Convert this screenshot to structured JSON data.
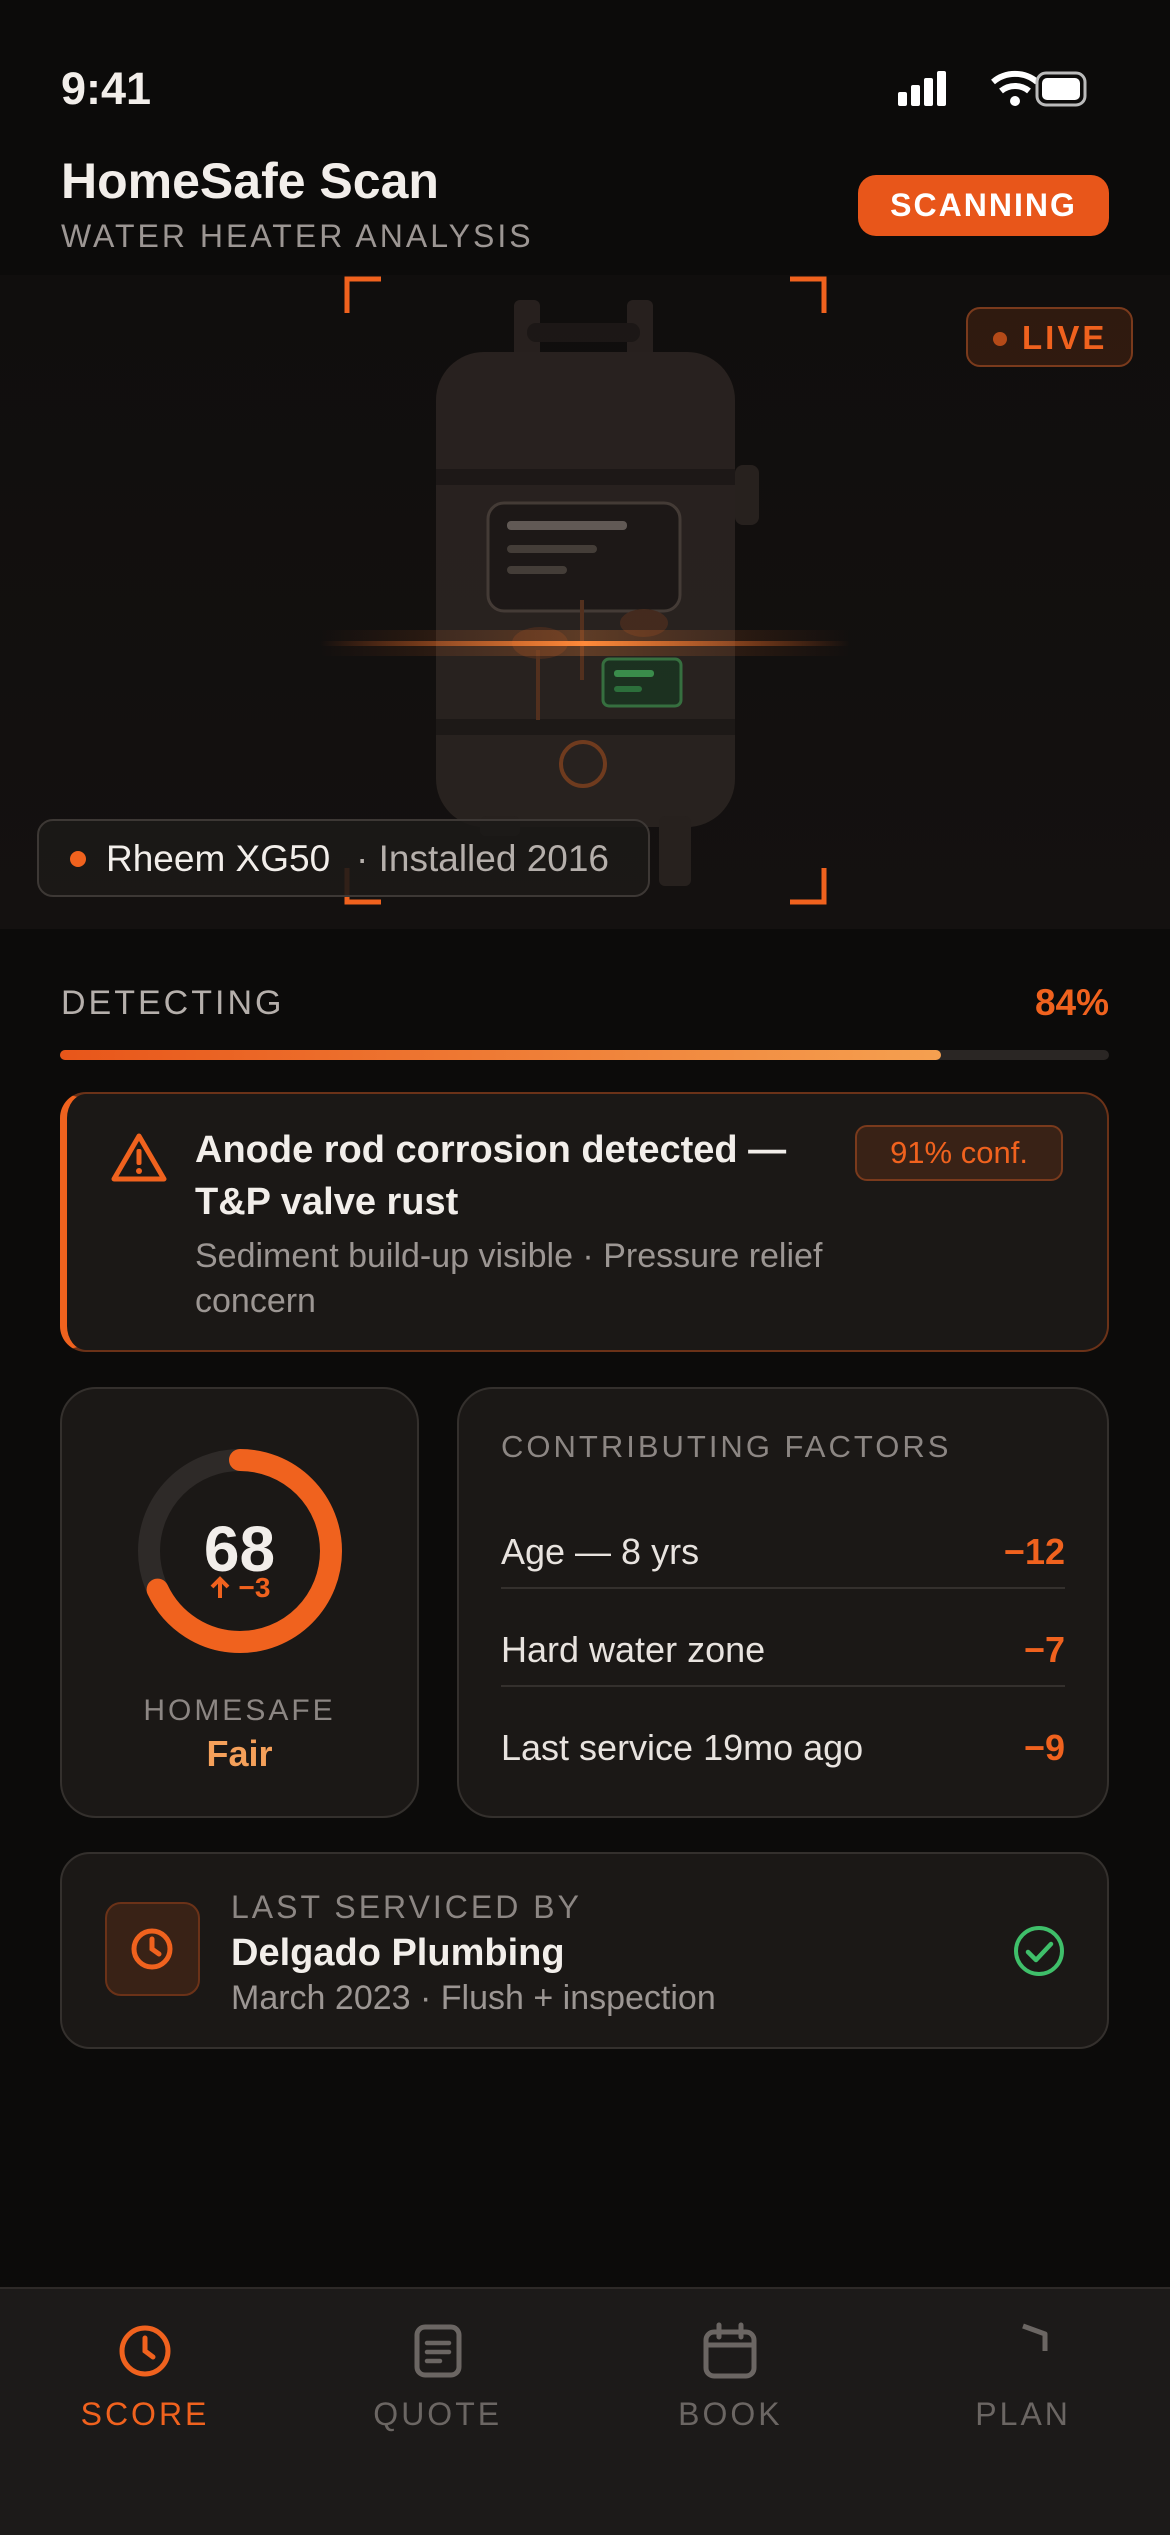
{
  "status_bar": {
    "time": "9:41"
  },
  "header": {
    "title": "HomeSafe Scan",
    "subtitle": "WATER HEATER ANALYSIS",
    "status_button": "SCANNING"
  },
  "scanner": {
    "live_badge": "LIVE",
    "device_model": "Rheem XG50",
    "device_detail": "· Installed 2016"
  },
  "progress": {
    "label": "DETECTING",
    "value": 84,
    "value_label": "84%"
  },
  "alert": {
    "title": "Anode rod corrosion detected — T&P valve rust",
    "description": "Sediment build-up visible · Pressure relief concern",
    "confidence": "91% conf."
  },
  "score": {
    "value": 68,
    "change": "−3",
    "label": "HOMESAFE",
    "rating": "Fair"
  },
  "factors": {
    "title": "CONTRIBUTING FACTORS",
    "items": [
      {
        "label": "Age — 8 yrs",
        "impact": "−12"
      },
      {
        "label": "Hard water zone",
        "impact": "−7"
      },
      {
        "label": "Last service 19mo ago",
        "impact": "−9"
      }
    ]
  },
  "service": {
    "heading": "LAST SERVICED BY",
    "provider": "Delgado Plumbing",
    "detail": "March 2023 · Flush + inspection"
  },
  "tabs": [
    {
      "label": "SCORE"
    },
    {
      "label": "QUOTE"
    },
    {
      "label": "BOOK"
    },
    {
      "label": "PLAN"
    }
  ]
}
